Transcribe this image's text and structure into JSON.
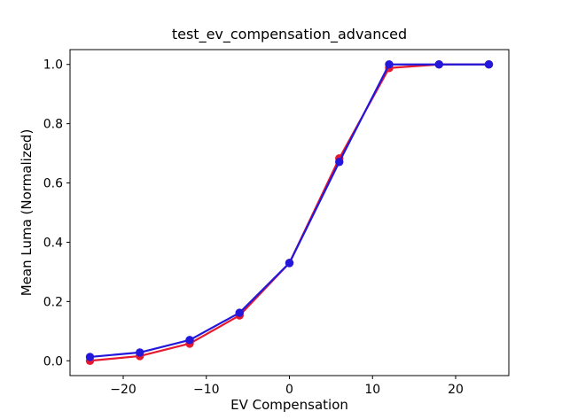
{
  "chart_data": {
    "type": "line",
    "title": "test_ev_compensation_advanced",
    "xlabel": "EV Compensation",
    "ylabel": "Mean Luma (Normalized)",
    "x": [
      -24,
      -18,
      -12,
      -6,
      0,
      6,
      12,
      18,
      24
    ],
    "series": [
      {
        "name": "red-series",
        "color": "#e6192e",
        "marker": "circle",
        "values": [
          0.0,
          0.016,
          0.058,
          0.153,
          0.33,
          0.683,
          0.988,
          1.0,
          1.0
        ]
      },
      {
        "name": "blue-series",
        "color": "#2317dc",
        "marker": "circle",
        "values": [
          0.013,
          0.028,
          0.07,
          0.162,
          0.33,
          0.671,
          1.0,
          1.0,
          1.0
        ]
      }
    ],
    "xlim": [
      -26.4,
      26.4
    ],
    "ylim": [
      -0.05,
      1.05
    ],
    "xticks": {
      "values": [
        -20,
        -10,
        0,
        10,
        20
      ],
      "labels": [
        "−20",
        "−10",
        "0",
        "10",
        "20"
      ]
    },
    "yticks": {
      "values": [
        0.0,
        0.2,
        0.4,
        0.6,
        0.8,
        1.0
      ],
      "labels": [
        "0.0",
        "0.2",
        "0.4",
        "0.6",
        "0.8",
        "1.0"
      ]
    },
    "grid": false,
    "legend": "none",
    "line_width": 2.2,
    "marker_radius": 4.7,
    "background_color": "#ffffff",
    "spine_color": "#000000"
  }
}
